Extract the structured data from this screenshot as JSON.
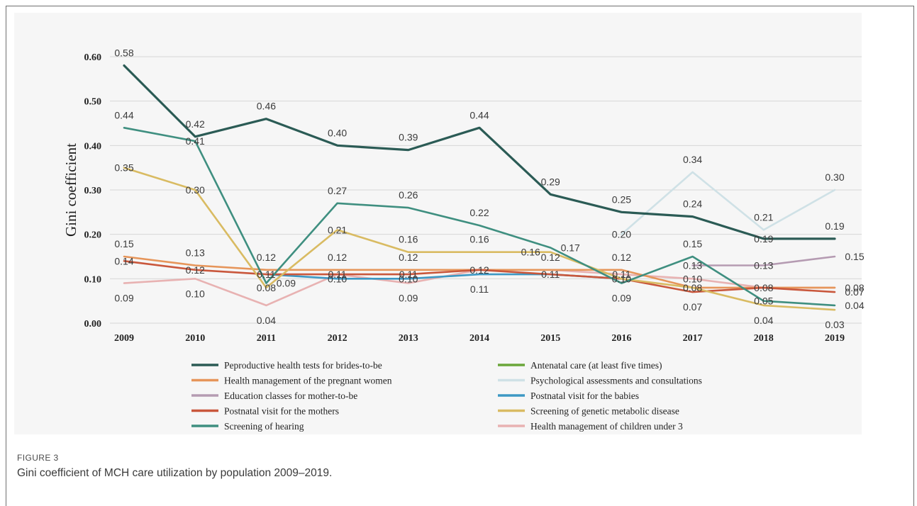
{
  "chart_data": {
    "type": "line",
    "ylabel": "Gini  coefficient",
    "ylim": [
      0,
      0.6
    ],
    "yticks": [
      "0.00",
      "0.10",
      "0.20",
      "0.30",
      "0.40",
      "0.50",
      "0.60"
    ],
    "categories": [
      "2009",
      "2010",
      "2011",
      "2012",
      "2013",
      "2014",
      "2015",
      "2016",
      "2017",
      "2018",
      "2019"
    ],
    "grid": true,
    "legend_position": "bottom",
    "series": [
      {
        "name": "Peproductive health tests for brides-to-be",
        "color": "#2b5b55",
        "values": [
          0.58,
          0.42,
          0.46,
          0.4,
          0.39,
          0.44,
          0.29,
          0.25,
          0.24,
          0.19,
          0.19
        ]
      },
      {
        "name": "Antenatal care (at least five times)",
        "color": "#6aa63a",
        "values": [
          null,
          null,
          null,
          null,
          null,
          null,
          null,
          null,
          null,
          null,
          null
        ]
      },
      {
        "name": "Health management of the pregnant women",
        "color": "#e6955a",
        "values": [
          0.15,
          0.13,
          0.12,
          0.12,
          0.12,
          0.12,
          0.12,
          0.12,
          0.08,
          0.08,
          0.08
        ]
      },
      {
        "name": "Psychological assessments and consultations",
        "color": "#cfe1e6",
        "values": [
          null,
          null,
          null,
          null,
          null,
          null,
          null,
          0.2,
          0.34,
          0.21,
          0.3
        ]
      },
      {
        "name": "Education classes for mother-to-be",
        "color": "#b59bb2",
        "values": [
          null,
          null,
          null,
          null,
          null,
          null,
          null,
          null,
          0.13,
          0.13,
          0.15
        ]
      },
      {
        "name": "Postnatal visit for the babies",
        "color": "#3d98c4",
        "values": [
          null,
          null,
          0.11,
          0.1,
          0.1,
          0.11,
          0.11,
          0.1,
          null,
          null,
          null
        ]
      },
      {
        "name": "Postnatal visit for the mothers",
        "color": "#c9573c",
        "values": [
          0.14,
          0.12,
          0.11,
          0.11,
          0.11,
          0.12,
          0.11,
          0.1,
          0.07,
          0.08,
          0.07
        ]
      },
      {
        "name": "Screening of genetic metabolic disease",
        "color": "#d9bb62",
        "values": [
          0.35,
          0.3,
          0.08,
          0.21,
          0.16,
          0.16,
          0.16,
          0.1,
          0.08,
          0.04,
          0.03
        ]
      },
      {
        "name": "Screening of hearing",
        "color": "#3f8f80",
        "values": [
          0.44,
          0.41,
          0.09,
          0.27,
          0.26,
          0.22,
          0.17,
          0.09,
          0.15,
          0.05,
          0.04
        ]
      },
      {
        "name": "Health management of children under 3",
        "color": "#e8b2b2",
        "values": [
          0.09,
          0.1,
          0.04,
          0.11,
          0.09,
          0.12,
          0.12,
          0.11,
          0.1,
          0.08,
          0.08
        ]
      }
    ],
    "point_labels": [
      {
        "x": "2009",
        "y": 0.58,
        "text": "0.58",
        "pos": "above"
      },
      {
        "x": "2010",
        "y": 0.42,
        "text": "0.42",
        "pos": "above"
      },
      {
        "x": "2011",
        "y": 0.46,
        "text": "0.46",
        "pos": "above"
      },
      {
        "x": "2012",
        "y": 0.4,
        "text": "0.40",
        "pos": "above"
      },
      {
        "x": "2013",
        "y": 0.39,
        "text": "0.39",
        "pos": "above"
      },
      {
        "x": "2014",
        "y": 0.44,
        "text": "0.44",
        "pos": "above"
      },
      {
        "x": "2015",
        "y": 0.29,
        "text": "0.29",
        "pos": "above"
      },
      {
        "x": "2016",
        "y": 0.25,
        "text": "0.25",
        "pos": "above"
      },
      {
        "x": "2017",
        "y": 0.24,
        "text": "0.24",
        "pos": "above"
      },
      {
        "x": "2018",
        "y": 0.19,
        "text": "0.19",
        "pos": "on"
      },
      {
        "x": "2019",
        "y": 0.19,
        "text": "0.19",
        "pos": "above"
      },
      {
        "x": "2009",
        "y": 0.44,
        "text": "0.44",
        "pos": "above"
      },
      {
        "x": "2010",
        "y": 0.41,
        "text": "0.41",
        "pos": "on"
      },
      {
        "x": "2011",
        "y": 0.11,
        "text": "0.11",
        "pos": "on"
      },
      {
        "x": "2012",
        "y": 0.27,
        "text": "0.27",
        "pos": "above"
      },
      {
        "x": "2013",
        "y": 0.26,
        "text": "0.26",
        "pos": "above"
      },
      {
        "x": "2014",
        "y": 0.22,
        "text": "0.22",
        "pos": "above"
      },
      {
        "x": "2015",
        "y": 0.17,
        "text": "0.17",
        "pos": "right"
      },
      {
        "x": "2017",
        "y": 0.15,
        "text": "0.15",
        "pos": "above"
      },
      {
        "x": "2018",
        "y": 0.05,
        "text": "0.05",
        "pos": "on"
      },
      {
        "x": "2019",
        "y": 0.04,
        "text": "0.04",
        "pos": "right"
      },
      {
        "x": "2009",
        "y": 0.35,
        "text": "0.35",
        "pos": "on"
      },
      {
        "x": "2010",
        "y": 0.3,
        "text": "0.30",
        "pos": "on"
      },
      {
        "x": "2011",
        "y": 0.09,
        "text": "0.09",
        "pos": "right"
      },
      {
        "x": "2012",
        "y": 0.21,
        "text": "0.21",
        "pos": "on"
      },
      {
        "x": "2013",
        "y": 0.16,
        "text": "0.16",
        "pos": "above"
      },
      {
        "x": "2014",
        "y": 0.16,
        "text": "0.16",
        "pos": "above"
      },
      {
        "x": "2015",
        "y": 0.16,
        "text": "0.16",
        "pos": "left"
      },
      {
        "x": "2018",
        "y": 0.04,
        "text": "0.04",
        "pos": "below"
      },
      {
        "x": "2019",
        "y": 0.03,
        "text": "0.03",
        "pos": "below"
      },
      {
        "x": "2016",
        "y": 0.2,
        "text": "0.20",
        "pos": "on"
      },
      {
        "x": "2017",
        "y": 0.34,
        "text": "0.34",
        "pos": "above"
      },
      {
        "x": "2018",
        "y": 0.21,
        "text": "0.21",
        "pos": "above"
      },
      {
        "x": "2019",
        "y": 0.3,
        "text": "0.30",
        "pos": "above"
      },
      {
        "x": "2009",
        "y": 0.15,
        "text": "0.15",
        "pos": "above"
      },
      {
        "x": "2010",
        "y": 0.13,
        "text": "0.13",
        "pos": "above"
      },
      {
        "x": "2011",
        "y": 0.12,
        "text": "0.12",
        "pos": "above"
      },
      {
        "x": "2012",
        "y": 0.12,
        "text": "0.12",
        "pos": "above"
      },
      {
        "x": "2013",
        "y": 0.12,
        "text": "0.12",
        "pos": "above"
      },
      {
        "x": "2014",
        "y": 0.12,
        "text": "0.12",
        "pos": "on"
      },
      {
        "x": "2015",
        "y": 0.12,
        "text": "0.12",
        "pos": "above"
      },
      {
        "x": "2016",
        "y": 0.12,
        "text": "0.12",
        "pos": "above"
      },
      {
        "x": "2009",
        "y": 0.14,
        "text": "0.14",
        "pos": "on"
      },
      {
        "x": "2010",
        "y": 0.12,
        "text": "0.12",
        "pos": "on"
      },
      {
        "x": "2012",
        "y": 0.11,
        "text": "0.11",
        "pos": "on"
      },
      {
        "x": "2013",
        "y": 0.11,
        "text": "0.11",
        "pos": "on"
      },
      {
        "x": "2015",
        "y": 0.11,
        "text": "0.11",
        "pos": "on"
      },
      {
        "x": "2016",
        "y": 0.11,
        "text": "0.11",
        "pos": "on"
      },
      {
        "x": "2016",
        "y": 0.1,
        "text": "0.10",
        "pos": "on"
      },
      {
        "x": "2017",
        "y": 0.08,
        "text": "0.08",
        "pos": "on"
      },
      {
        "x": "2018",
        "y": 0.08,
        "text": "0.08",
        "pos": "on"
      },
      {
        "x": "2019",
        "y": 0.07,
        "text": "0.07",
        "pos": "right"
      },
      {
        "x": "2009",
        "y": 0.09,
        "text": "0.09",
        "pos": "below"
      },
      {
        "x": "2010",
        "y": 0.1,
        "text": "0.10",
        "pos": "below"
      },
      {
        "x": "2011",
        "y": 0.08,
        "text": "0.08",
        "pos": "on"
      },
      {
        "x": "2011",
        "y": 0.04,
        "text": "0.04",
        "pos": "below"
      },
      {
        "x": "2012",
        "y": 0.1,
        "text": "0.10",
        "pos": "on"
      },
      {
        "x": "2013",
        "y": 0.1,
        "text": "0.10",
        "pos": "on"
      },
      {
        "x": "2013",
        "y": 0.09,
        "text": "0.09",
        "pos": "below"
      },
      {
        "x": "2014",
        "y": 0.11,
        "text": "0.11",
        "pos": "below"
      },
      {
        "x": "2016",
        "y": 0.09,
        "text": "0.09",
        "pos": "below"
      },
      {
        "x": "2017",
        "y": 0.13,
        "text": "0.13",
        "pos": "on"
      },
      {
        "x": "2017",
        "y": 0.1,
        "text": "0.10",
        "pos": "on"
      },
      {
        "x": "2017",
        "y": 0.07,
        "text": "0.07",
        "pos": "below"
      },
      {
        "x": "2018",
        "y": 0.13,
        "text": "0.13",
        "pos": "on"
      },
      {
        "x": "2019",
        "y": 0.15,
        "text": "0.15",
        "pos": "right"
      },
      {
        "x": "2019",
        "y": 0.08,
        "text": "0.08",
        "pos": "right"
      }
    ]
  },
  "caption": {
    "label": "FIGURE 3",
    "text": "Gini coefficient of MCH care utilization by population 2009–2019."
  }
}
